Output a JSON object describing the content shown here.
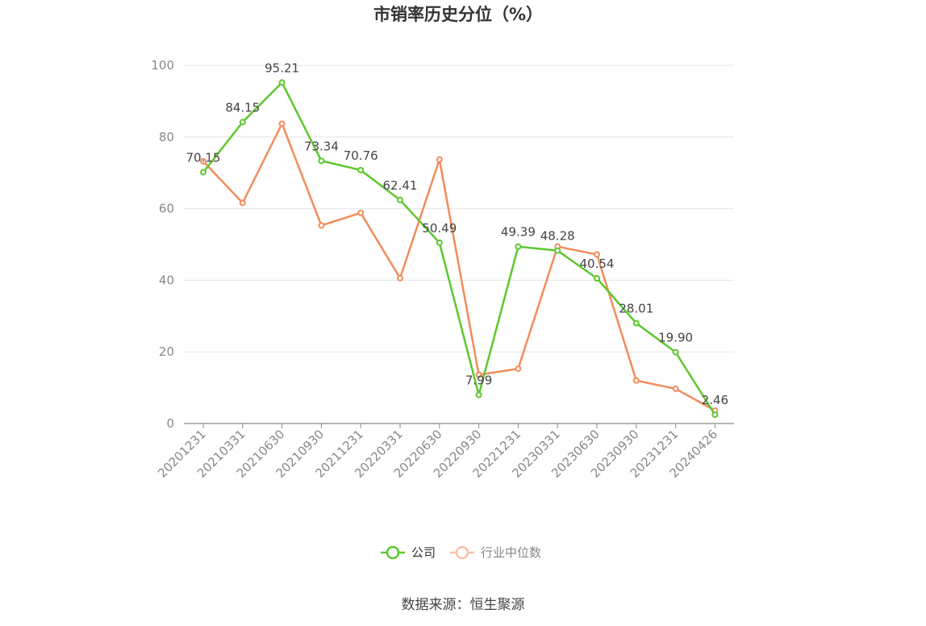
{
  "chart_data": {
    "type": "line",
    "title": "市销率历史分位（%）",
    "source": "数据来源：恒生聚源",
    "x": [
      "20201231",
      "20210331",
      "20210630",
      "20210930",
      "20211231",
      "20220331",
      "20220630",
      "20220930",
      "20221231",
      "20230331",
      "20230630",
      "20230930",
      "20231231",
      "20240426"
    ],
    "ylim": [
      0,
      100
    ],
    "yticks": [
      0,
      20,
      40,
      60,
      80,
      100
    ],
    "grid": true,
    "legend_position": "bottom-center",
    "series": [
      {
        "name": "公司",
        "color": "#5cc72d",
        "values": [
          70.15,
          84.15,
          95.21,
          73.34,
          70.76,
          62.41,
          50.49,
          7.99,
          49.39,
          48.28,
          40.54,
          28.01,
          19.9,
          2.46
        ],
        "labels": [
          "70.15",
          "84.15",
          "95.21",
          "73.34",
          "70.76",
          "62.41",
          "50.49",
          "7.99",
          "49.39",
          "48.28",
          "40.54",
          "28.01",
          "19.90",
          "2.46"
        ]
      },
      {
        "name": "行业中位数",
        "color": "#f28c5a",
        "values": [
          73.2,
          61.6,
          83.7,
          55.3,
          58.8,
          40.6,
          73.7,
          13.6,
          15.3,
          49.4,
          47.2,
          12.0,
          9.7,
          3.6
        ]
      }
    ]
  }
}
